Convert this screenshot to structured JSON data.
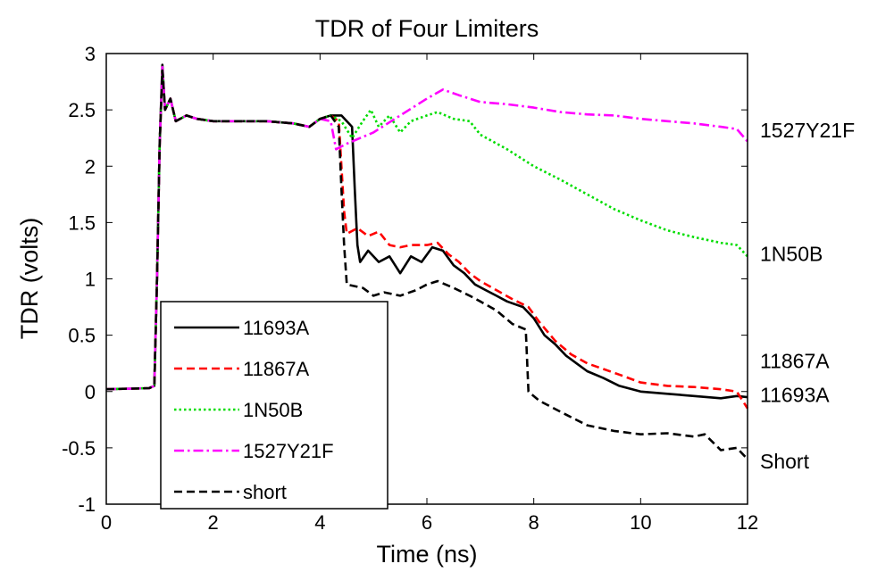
{
  "chart_data": {
    "type": "line",
    "title": "TDR of Four Limiters",
    "xlabel": "Time (ns)",
    "ylabel": "TDR (volts)",
    "xlim": [
      0,
      12
    ],
    "ylim": [
      -1,
      3
    ],
    "x_ticks": [
      0,
      2,
      4,
      6,
      8,
      10,
      12
    ],
    "x_tick_labels": [
      "0",
      "2",
      "4",
      "6",
      "8",
      "10",
      "12"
    ],
    "y_ticks": [
      -1,
      -0.5,
      0,
      0.5,
      1,
      1.5,
      2,
      2.5,
      3
    ],
    "y_tick_labels": [
      "-1",
      "-0.5",
      "0",
      "0.5",
      "1",
      "1.5",
      "2",
      "2.5",
      "3"
    ],
    "grid": false,
    "legend_position": "bottom-left",
    "series": [
      {
        "name": "11693A",
        "color": "#000000",
        "style": "solid",
        "points": [
          [
            0,
            0.02
          ],
          [
            0.8,
            0.03
          ],
          [
            0.9,
            0.05
          ],
          [
            0.95,
            1.0
          ],
          [
            1.0,
            2.2
          ],
          [
            1.05,
            2.9
          ],
          [
            1.1,
            2.5
          ],
          [
            1.2,
            2.6
          ],
          [
            1.3,
            2.4
          ],
          [
            1.5,
            2.45
          ],
          [
            1.7,
            2.42
          ],
          [
            2.0,
            2.4
          ],
          [
            2.5,
            2.4
          ],
          [
            3.0,
            2.4
          ],
          [
            3.5,
            2.38
          ],
          [
            3.8,
            2.35
          ],
          [
            4.0,
            2.42
          ],
          [
            4.2,
            2.45
          ],
          [
            4.4,
            2.45
          ],
          [
            4.6,
            2.35
          ],
          [
            4.65,
            1.8
          ],
          [
            4.7,
            1.3
          ],
          [
            4.75,
            1.15
          ],
          [
            4.9,
            1.25
          ],
          [
            5.1,
            1.15
          ],
          [
            5.3,
            1.2
          ],
          [
            5.5,
            1.05
          ],
          [
            5.7,
            1.2
          ],
          [
            5.9,
            1.15
          ],
          [
            6.1,
            1.28
          ],
          [
            6.3,
            1.25
          ],
          [
            6.5,
            1.12
          ],
          [
            6.7,
            1.05
          ],
          [
            6.9,
            0.95
          ],
          [
            7.1,
            0.9
          ],
          [
            7.3,
            0.85
          ],
          [
            7.5,
            0.8
          ],
          [
            7.8,
            0.75
          ],
          [
            8.0,
            0.65
          ],
          [
            8.2,
            0.5
          ],
          [
            8.4,
            0.42
          ],
          [
            8.6,
            0.32
          ],
          [
            8.8,
            0.25
          ],
          [
            9.0,
            0.18
          ],
          [
            9.3,
            0.12
          ],
          [
            9.6,
            0.05
          ],
          [
            10.0,
            0.0
          ],
          [
            10.5,
            -0.02
          ],
          [
            11.0,
            -0.04
          ],
          [
            11.5,
            -0.06
          ],
          [
            11.8,
            -0.04
          ],
          [
            12.0,
            -0.05
          ]
        ]
      },
      {
        "name": "11867A",
        "color": "#ff0000",
        "style": "dashed",
        "points": [
          [
            0,
            0.02
          ],
          [
            0.8,
            0.03
          ],
          [
            0.9,
            0.05
          ],
          [
            0.95,
            1.0
          ],
          [
            1.0,
            2.2
          ],
          [
            1.05,
            2.85
          ],
          [
            1.1,
            2.5
          ],
          [
            1.2,
            2.6
          ],
          [
            1.3,
            2.4
          ],
          [
            1.5,
            2.45
          ],
          [
            1.7,
            2.42
          ],
          [
            2.0,
            2.4
          ],
          [
            2.5,
            2.4
          ],
          [
            3.0,
            2.4
          ],
          [
            3.5,
            2.38
          ],
          [
            3.8,
            2.35
          ],
          [
            4.0,
            2.42
          ],
          [
            4.2,
            2.45
          ],
          [
            4.35,
            2.4
          ],
          [
            4.4,
            2.0
          ],
          [
            4.45,
            1.6
          ],
          [
            4.5,
            1.4
          ],
          [
            4.7,
            1.45
          ],
          [
            4.9,
            1.38
          ],
          [
            5.1,
            1.42
          ],
          [
            5.3,
            1.3
          ],
          [
            5.5,
            1.28
          ],
          [
            5.7,
            1.3
          ],
          [
            6.0,
            1.3
          ],
          [
            6.2,
            1.32
          ],
          [
            6.4,
            1.22
          ],
          [
            6.6,
            1.15
          ],
          [
            6.8,
            1.05
          ],
          [
            7.0,
            0.98
          ],
          [
            7.3,
            0.9
          ],
          [
            7.6,
            0.82
          ],
          [
            7.9,
            0.75
          ],
          [
            8.1,
            0.62
          ],
          [
            8.4,
            0.45
          ],
          [
            8.7,
            0.33
          ],
          [
            9.0,
            0.25
          ],
          [
            9.3,
            0.2
          ],
          [
            9.6,
            0.15
          ],
          [
            10.0,
            0.08
          ],
          [
            10.5,
            0.05
          ],
          [
            11.0,
            0.04
          ],
          [
            11.5,
            0.02
          ],
          [
            11.8,
            0.0
          ],
          [
            12.0,
            -0.15
          ]
        ]
      },
      {
        "name": "1N50B",
        "color": "#00dd00",
        "style": "dotted",
        "points": [
          [
            0,
            0.02
          ],
          [
            0.8,
            0.03
          ],
          [
            0.9,
            0.05
          ],
          [
            0.95,
            1.0
          ],
          [
            1.0,
            2.2
          ],
          [
            1.05,
            2.85
          ],
          [
            1.1,
            2.5
          ],
          [
            1.2,
            2.6
          ],
          [
            1.3,
            2.4
          ],
          [
            1.5,
            2.45
          ],
          [
            1.7,
            2.42
          ],
          [
            2.0,
            2.4
          ],
          [
            2.5,
            2.4
          ],
          [
            3.0,
            2.4
          ],
          [
            3.5,
            2.38
          ],
          [
            3.8,
            2.35
          ],
          [
            4.0,
            2.42
          ],
          [
            4.2,
            2.45
          ],
          [
            4.4,
            2.4
          ],
          [
            4.6,
            2.25
          ],
          [
            4.8,
            2.4
          ],
          [
            4.95,
            2.5
          ],
          [
            5.1,
            2.35
          ],
          [
            5.3,
            2.45
          ],
          [
            5.5,
            2.3
          ],
          [
            5.7,
            2.4
          ],
          [
            6.0,
            2.45
          ],
          [
            6.2,
            2.48
          ],
          [
            6.5,
            2.42
          ],
          [
            6.8,
            2.4
          ],
          [
            7.0,
            2.28
          ],
          [
            7.5,
            2.15
          ],
          [
            8.0,
            2.0
          ],
          [
            8.5,
            1.88
          ],
          [
            9.0,
            1.75
          ],
          [
            9.5,
            1.62
          ],
          [
            10.0,
            1.52
          ],
          [
            10.5,
            1.43
          ],
          [
            11.0,
            1.37
          ],
          [
            11.5,
            1.32
          ],
          [
            11.8,
            1.3
          ],
          [
            12.0,
            1.2
          ]
        ]
      },
      {
        "name": "1527Y21F",
        "color": "#ff00ff",
        "style": "dashdot",
        "points": [
          [
            0,
            0.02
          ],
          [
            0.8,
            0.03
          ],
          [
            0.9,
            0.05
          ],
          [
            0.95,
            1.0
          ],
          [
            1.0,
            2.2
          ],
          [
            1.05,
            2.88
          ],
          [
            1.1,
            2.5
          ],
          [
            1.2,
            2.6
          ],
          [
            1.3,
            2.4
          ],
          [
            1.5,
            2.45
          ],
          [
            1.7,
            2.42
          ],
          [
            2.0,
            2.4
          ],
          [
            2.5,
            2.4
          ],
          [
            3.0,
            2.4
          ],
          [
            3.5,
            2.38
          ],
          [
            3.8,
            2.35
          ],
          [
            4.0,
            2.42
          ],
          [
            4.2,
            2.4
          ],
          [
            4.3,
            2.15
          ],
          [
            4.5,
            2.2
          ],
          [
            5.0,
            2.3
          ],
          [
            5.5,
            2.45
          ],
          [
            6.0,
            2.6
          ],
          [
            6.3,
            2.68
          ],
          [
            6.6,
            2.63
          ],
          [
            7.0,
            2.57
          ],
          [
            7.5,
            2.55
          ],
          [
            8.0,
            2.52
          ],
          [
            8.5,
            2.48
          ],
          [
            9.0,
            2.46
          ],
          [
            9.5,
            2.45
          ],
          [
            10.0,
            2.42
          ],
          [
            10.5,
            2.4
          ],
          [
            11.0,
            2.38
          ],
          [
            11.5,
            2.35
          ],
          [
            11.8,
            2.33
          ],
          [
            12.0,
            2.22
          ]
        ]
      },
      {
        "name": "short",
        "color": "#000000",
        "style": "dashed",
        "points": [
          [
            0,
            0.02
          ],
          [
            0.8,
            0.03
          ],
          [
            0.9,
            0.05
          ],
          [
            0.95,
            1.0
          ],
          [
            1.0,
            2.2
          ],
          [
            1.05,
            2.85
          ],
          [
            1.1,
            2.5
          ],
          [
            1.2,
            2.6
          ],
          [
            1.3,
            2.4
          ],
          [
            1.5,
            2.45
          ],
          [
            1.7,
            2.42
          ],
          [
            2.0,
            2.4
          ],
          [
            2.5,
            2.4
          ],
          [
            3.0,
            2.4
          ],
          [
            3.5,
            2.38
          ],
          [
            3.8,
            2.35
          ],
          [
            4.0,
            2.42
          ],
          [
            4.2,
            2.45
          ],
          [
            4.35,
            2.35
          ],
          [
            4.4,
            1.8
          ],
          [
            4.45,
            1.3
          ],
          [
            4.5,
            0.95
          ],
          [
            4.8,
            0.92
          ],
          [
            5.0,
            0.85
          ],
          [
            5.2,
            0.88
          ],
          [
            5.5,
            0.85
          ],
          [
            5.8,
            0.9
          ],
          [
            6.0,
            0.95
          ],
          [
            6.2,
            0.98
          ],
          [
            6.5,
            0.92
          ],
          [
            6.8,
            0.85
          ],
          [
            7.0,
            0.8
          ],
          [
            7.3,
            0.72
          ],
          [
            7.6,
            0.6
          ],
          [
            7.85,
            0.55
          ],
          [
            7.9,
            0.0
          ],
          [
            8.1,
            -0.08
          ],
          [
            8.5,
            -0.18
          ],
          [
            9.0,
            -0.3
          ],
          [
            9.5,
            -0.35
          ],
          [
            10.0,
            -0.38
          ],
          [
            10.5,
            -0.37
          ],
          [
            11.0,
            -0.4
          ],
          [
            11.2,
            -0.38
          ],
          [
            11.5,
            -0.52
          ],
          [
            11.8,
            -0.5
          ],
          [
            12.0,
            -0.6
          ]
        ]
      }
    ],
    "annotations": [
      {
        "text": "1527Y21F",
        "y": 2.32
      },
      {
        "text": "1N50B",
        "y": 1.22
      },
      {
        "text": "11867A",
        "y": 0.27
      },
      {
        "text": "11693A",
        "y": -0.03
      },
      {
        "text": "Short",
        "y": -0.62
      }
    ]
  }
}
